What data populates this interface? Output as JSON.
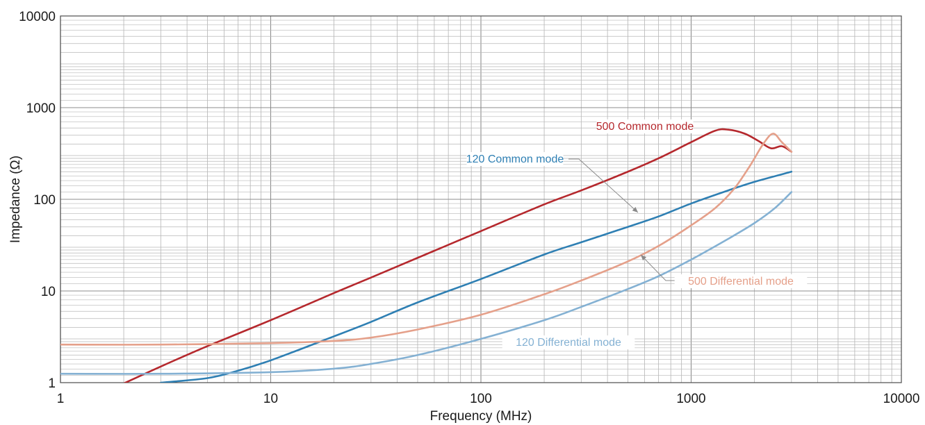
{
  "chart_data": {
    "type": "line",
    "xlabel": "Frequency (MHz)",
    "ylabel": "Impedance (Ω)",
    "x_scale": "log",
    "y_scale": "log",
    "xlim": [
      1,
      10000
    ],
    "ylim": [
      1,
      10000
    ],
    "grid": true,
    "x_ticks": [
      "1",
      "10",
      "100",
      "1000",
      "10000"
    ],
    "y_ticks": [
      "1",
      "10",
      "100",
      "1000",
      "10000"
    ],
    "series": [
      {
        "name": "500 Common mode",
        "color": "#b5282d",
        "x": [
          2,
          3,
          5,
          10,
          20,
          30,
          50,
          100,
          200,
          300,
          500,
          700,
          1000,
          1300,
          1500,
          1800,
          2100,
          2400,
          2700,
          3000
        ],
        "y": [
          0.98,
          1.5,
          2.5,
          4.8,
          9.5,
          14,
          23,
          45,
          88,
          125,
          200,
          280,
          420,
          560,
          575,
          520,
          430,
          360,
          380,
          330
        ]
      },
      {
        "name": "120 Common mode",
        "color": "#2e7fb3",
        "x": [
          3,
          5,
          7,
          10,
          20,
          30,
          50,
          100,
          200,
          300,
          500,
          700,
          1000,
          1500,
          2000,
          3000
        ],
        "y": [
          1.0,
          1.12,
          1.35,
          1.75,
          3.2,
          4.6,
          7.5,
          13.5,
          25,
          34,
          50,
          65,
          90,
          125,
          155,
          200
        ]
      },
      {
        "name": "500 Differential mode",
        "color": "#e5a08a",
        "x": [
          1,
          3,
          10,
          20,
          30,
          50,
          100,
          200,
          300,
          500,
          700,
          1000,
          1300,
          1600,
          1900,
          2200,
          2450,
          2700,
          3000
        ],
        "y": [
          2.6,
          2.6,
          2.7,
          2.85,
          3.1,
          3.8,
          5.5,
          9.2,
          13,
          21,
          31,
          52,
          80,
          130,
          230,
          400,
          520,
          420,
          330
        ]
      },
      {
        "name": "120 Differential mode",
        "color": "#84b1d3",
        "x": [
          1,
          3,
          10,
          20,
          30,
          50,
          100,
          200,
          300,
          500,
          700,
          1000,
          1500,
          2000,
          2500,
          3000
        ],
        "y": [
          1.25,
          1.25,
          1.3,
          1.42,
          1.6,
          2.0,
          3.0,
          4.8,
          6.7,
          10.5,
          14.5,
          22,
          37,
          55,
          80,
          120
        ]
      }
    ],
    "annotations": [
      {
        "text": "500 Common mode",
        "series": "500 Common mode",
        "color": "#b5282d"
      },
      {
        "text": "120 Common mode",
        "series": "120 Common mode",
        "color": "#2e7fb3"
      },
      {
        "text": "500 Differential mode",
        "series": "500 Differential mode",
        "color": "#e5a08a"
      },
      {
        "text": "120 Differential mode",
        "series": "120 Differential mode",
        "color": "#84b1d3"
      }
    ]
  }
}
